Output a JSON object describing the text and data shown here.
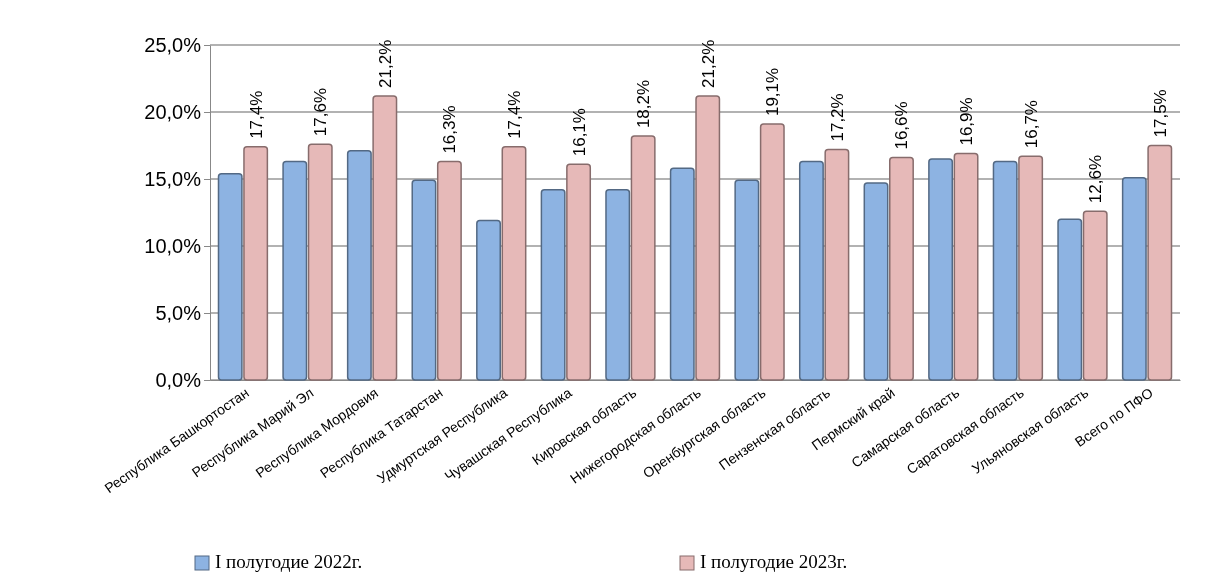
{
  "chart_data": {
    "type": "bar",
    "categories": [
      "Республика Башкортостан",
      "Республика Марий Эл",
      "Республика Мордовия",
      "Республика Татарстан",
      "Удмуртская Республика",
      "Чувашская Республика",
      "Кировская область",
      "Нижегородская область",
      "Оренбургская область",
      "Пензенская область",
      "Пермский край",
      "Самарская область",
      "Саратовская область",
      "Ульяновская область",
      "Всего  по ПФО"
    ],
    "series": [
      {
        "name": "I полугодие 2022г.",
        "color": "#8db3e2",
        "values": [
          15.4,
          16.3,
          17.1,
          14.9,
          11.9,
          14.2,
          14.2,
          15.8,
          14.9,
          16.3,
          14.7,
          16.5,
          16.3,
          12.0,
          15.1
        ]
      },
      {
        "name": "I полугодие 2023г.",
        "color": "#e6b9b8",
        "values": [
          17.4,
          17.6,
          21.2,
          16.3,
          17.4,
          16.1,
          18.2,
          21.2,
          19.1,
          17.2,
          16.6,
          16.9,
          16.7,
          12.6,
          17.5
        ],
        "value_labels": [
          "17,4%",
          "17,6%",
          "21,2%",
          "16,3%",
          "17,4%",
          "16,1%",
          "18,2%",
          "21,2%",
          "19,1%",
          "17,2%",
          "16,6%",
          "16,9%",
          "16,7%",
          "12,6%",
          "17,5%"
        ]
      }
    ],
    "ylim": [
      0,
      25
    ],
    "yticks": [
      {
        "value": 0,
        "label": "0,0%"
      },
      {
        "value": 5,
        "label": "5,0%"
      },
      {
        "value": 10,
        "label": "10,0%"
      },
      {
        "value": 15,
        "label": "15,0%"
      },
      {
        "value": 20,
        "label": "20,0%"
      },
      {
        "value": 25,
        "label": "25,0%"
      }
    ],
    "grid": "y",
    "legend": "bottom"
  }
}
